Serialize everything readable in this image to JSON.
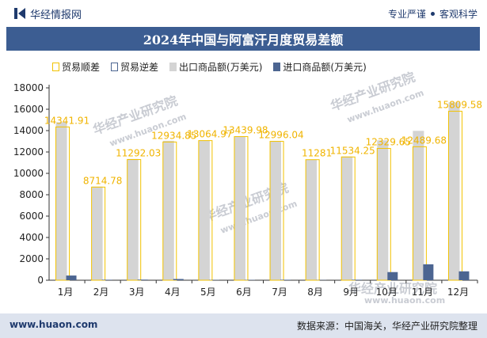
{
  "header": {
    "brand": "华经情报网",
    "tags": [
      "专业严谨",
      "客观科学"
    ]
  },
  "title": "2024年中国与阿富汗月度贸易差额",
  "legend": {
    "surplus": "贸易顺差",
    "deficit": "贸易逆差",
    "exports": "出口商品额(万美元)",
    "imports": "进口商品额(万美元)"
  },
  "watermark": {
    "text": "华经产业研究院",
    "url": "www.huaon.com"
  },
  "footer": {
    "website": "www.huaon.com",
    "source": "数据来源：中国海关，华经产业研究院整理"
  },
  "colors": {
    "exports": "#d4d4d4",
    "imports": "#4c6591",
    "surplus_border": "#f2c200",
    "label": "#f0b400",
    "deficit_border": "#4c6591"
  },
  "chart_data": {
    "type": "bar",
    "categories": [
      "1月",
      "2月",
      "3月",
      "4月",
      "5月",
      "6月",
      "7月",
      "8月",
      "9月",
      "10月",
      "11月",
      "12月"
    ],
    "series": [
      {
        "name": "出口商品额(万美元)",
        "values": [
          14780,
          8760,
          11350,
          13050,
          13090,
          13470,
          13040,
          11300,
          11580,
          13090,
          13980,
          16640
        ]
      },
      {
        "name": "进口商品额(万美元)",
        "values": [
          438.09,
          45.22,
          57.97,
          115.15,
          25.03,
          30.02,
          43.96,
          19,
          45.75,
          760.35,
          1490.32,
          830.42
        ]
      },
      {
        "name": "贸易顺差",
        "values": [
          14341.91,
          8714.78,
          11292.03,
          12934.85,
          13064.97,
          13439.98,
          12996.04,
          11281,
          11534.25,
          12329.65,
          12489.68,
          15809.58
        ]
      }
    ],
    "data_labels": [
      "14341.91",
      "8714.78",
      "11292.03",
      "12934.85",
      "13064.97",
      "13439.98",
      "12996.04",
      "11281",
      "11534.25",
      "12329.65",
      "12489.68",
      "15809.58"
    ],
    "y_ticks": [
      "0",
      "2000",
      "4000",
      "6000",
      "8000",
      "10000",
      "12000",
      "14000",
      "16000",
      "18000"
    ],
    "ylim": [
      0,
      18000
    ],
    "legend_position": "top",
    "grid": false
  }
}
